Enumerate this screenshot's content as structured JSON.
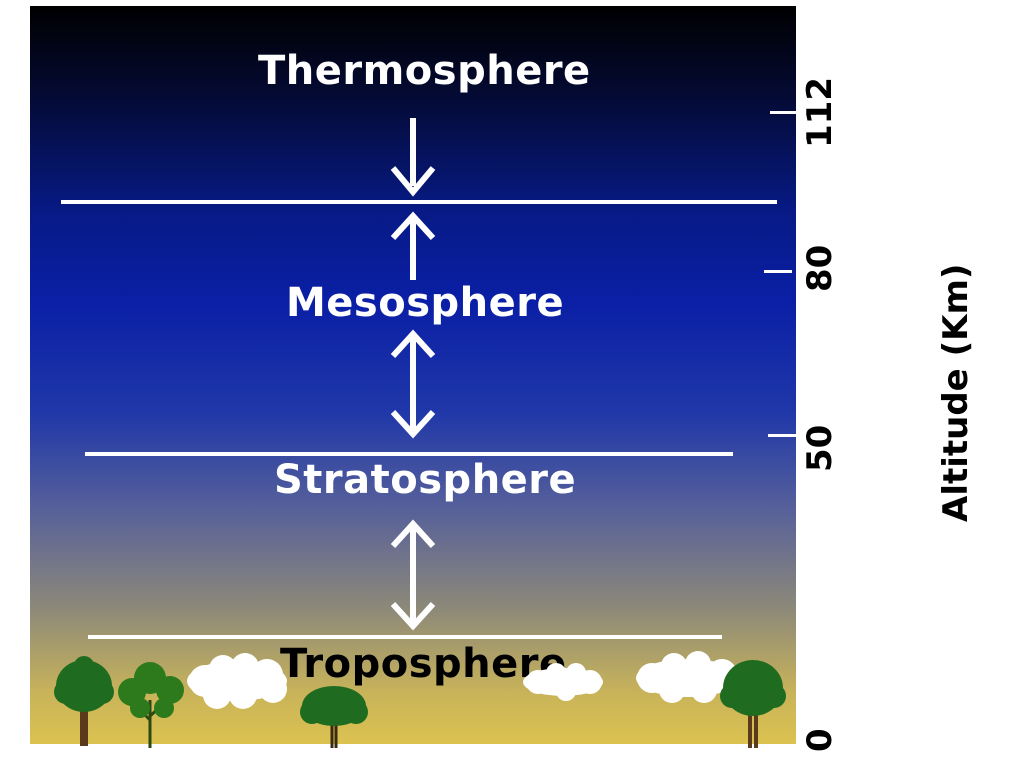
{
  "layers": {
    "thermosphere": "Thermosphere",
    "mesosphere": "Mesosphere",
    "stratosphere": "Stratosphere",
    "troposphere": "Troposphere"
  },
  "altitude_axis": {
    "title": "Altitude (Km)",
    "ticks": [
      "112",
      "80",
      "50",
      "0"
    ]
  },
  "colors": {
    "sky_top": "#000000",
    "sky_mid": "#0a1fa6",
    "ground": "#dcc250",
    "tree": "#1f6b1f",
    "cloud": "#ffffff"
  }
}
